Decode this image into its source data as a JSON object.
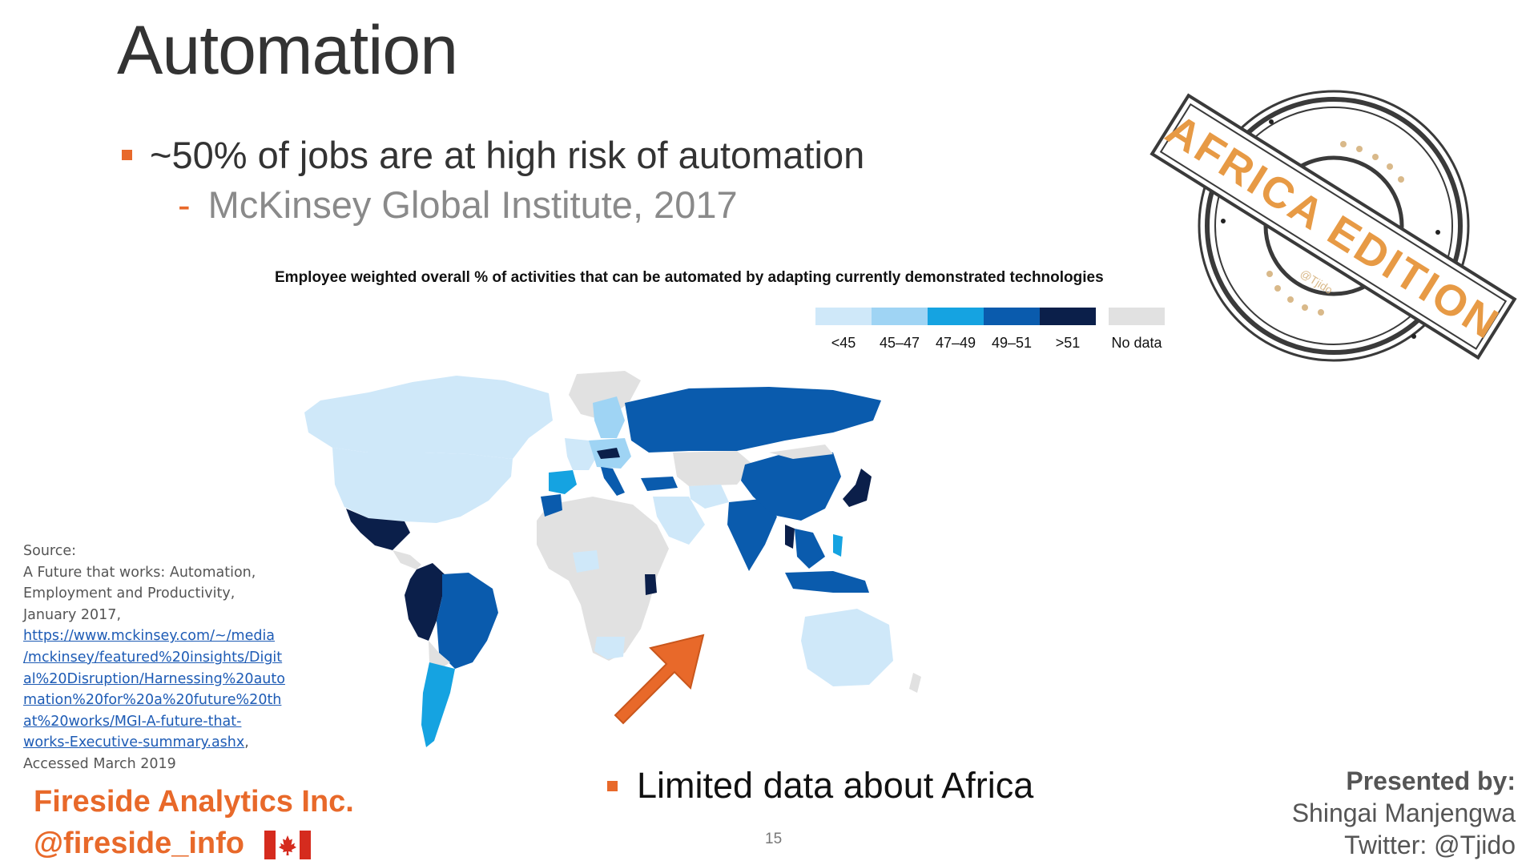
{
  "slide": {
    "title": "Automation",
    "bullet_main": "~50% of jobs are at high risk of automation",
    "bullet_sub_marker": "-",
    "bullet_sub": "McKinsey Global Institute, 2017",
    "bullet_bottom": "Limited data about Africa",
    "page_number": "15",
    "accent_color": "#e8692a"
  },
  "map": {
    "title": "Employee weighted overall % of activities that can be automated  by adapting currently demonstrated technologies",
    "legend": [
      {
        "label": "<45",
        "color": "#cfe8f9"
      },
      {
        "label": "45–47",
        "color": "#9fd4f4"
      },
      {
        "label": "47–49",
        "color": "#15a3e1"
      },
      {
        "label": "49–51",
        "color": "#0a5bad"
      },
      {
        "label": ">51",
        "color": "#0b1f4a"
      },
      {
        "label": "No data",
        "color": "#e1e1e1"
      }
    ]
  },
  "source": {
    "lines": [
      "Source:",
      "A Future that works: Automation,",
      "Employment and Productivity,",
      "January 2017,"
    ],
    "link_lines": [
      "https://www.mckinsey.com/~/media",
      "/mckinsey/featured%20insights/Digit",
      "al%20Disruption/Harnessing%20auto",
      "mation%20for%20a%20future%20th",
      "at%20works/MGI-A-future-that-",
      "works-Executive-summary.ashx"
    ],
    "link_trailing": ",",
    "accessed": "Accessed March 2019"
  },
  "branding": {
    "company": "Fireside Analytics Inc.",
    "handle": "@fireside_info",
    "flag_icon": "canada-flag-icon"
  },
  "presenter": {
    "heading": "Presented by:",
    "name": "Shingai Manjengwa",
    "twitter": "Twitter: @Tjido"
  },
  "stamp": {
    "text": "AFRICA EDITION",
    "handle": "@Tjido"
  }
}
